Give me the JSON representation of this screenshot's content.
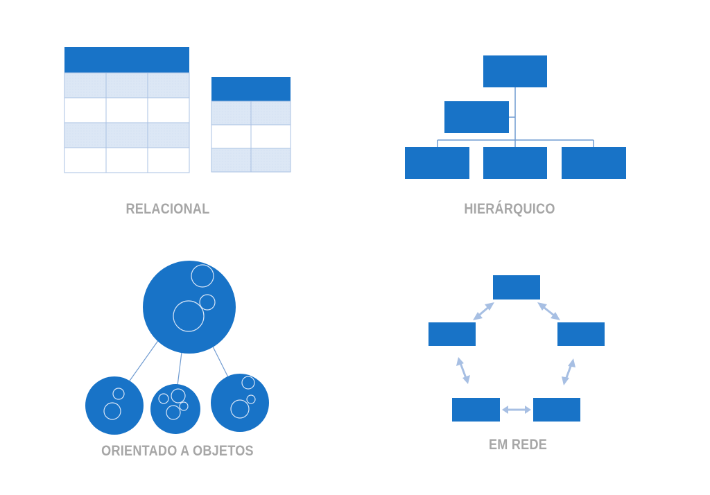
{
  "labels": {
    "relational": "RELACIONAL",
    "hierarchical": "HIERÁRQUICO",
    "object_oriented": "ORIENTADO A OBJETOS",
    "network": "EM REDE"
  },
  "colors": {
    "primary_blue": "#1873c7",
    "light_blue": "#dce7f5",
    "grid_line": "#a9c0e3",
    "connector": "#6f9bd1",
    "arrow": "#a7bfe3",
    "caption_gray": "#a6a6a6"
  },
  "relational": {
    "tables": [
      {
        "columns": 3,
        "body_rows": 4,
        "shaded_rows": [
          0,
          2
        ]
      },
      {
        "columns": 2,
        "body_rows": 3,
        "shaded_rows": [
          0,
          2
        ]
      }
    ]
  },
  "hierarchical": {
    "root": 1,
    "middle": 1,
    "leaves": 3
  },
  "object_oriented": {
    "parent_inner_circles": 3,
    "children": [
      {
        "inner_circles": 2
      },
      {
        "inner_circles": 4
      },
      {
        "inner_circles": 3
      }
    ]
  },
  "network": {
    "nodes": 5,
    "links": 5,
    "bidirectional": true
  }
}
